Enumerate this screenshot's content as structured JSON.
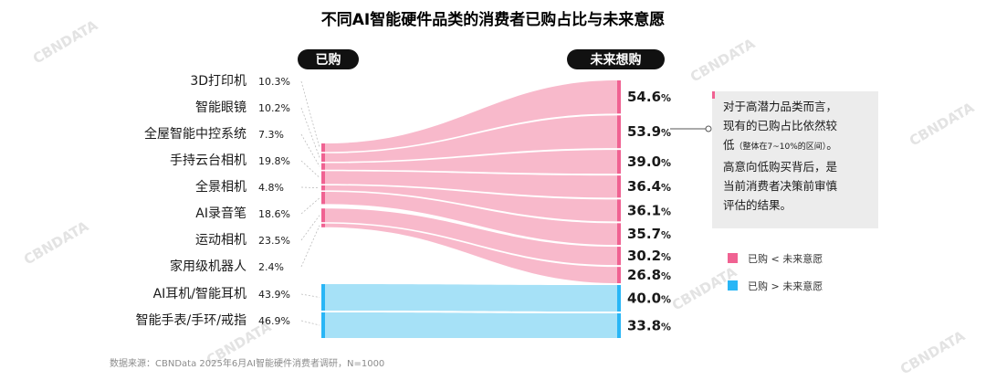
{
  "chart_data": {
    "type": "sankey",
    "title": "不同AI智能硬件品类的消费者已购占比与未来意愿",
    "left_header": "已购",
    "right_header": "未来想购",
    "left": [
      {
        "label": "3D打印机",
        "value": "10.3%"
      },
      {
        "label": "智能眼镜",
        "value": "10.2%"
      },
      {
        "label": "全屋智能中控系统",
        "value": "7.3%"
      },
      {
        "label": "手持云台相机",
        "value": "19.8%"
      },
      {
        "label": "全景相机",
        "value": "4.8%"
      },
      {
        "label": "AI录音笔",
        "value": "18.6%"
      },
      {
        "label": "运动相机",
        "value": "23.5%"
      },
      {
        "label": "家用级机器人",
        "value": "2.4%"
      },
      {
        "label": "AI耳机/智能耳机",
        "value": "43.9%"
      },
      {
        "label": "智能手表/手环/戒指",
        "value": "46.9%"
      }
    ],
    "right": [
      {
        "value": "54.6",
        "unit": "%"
      },
      {
        "value": "53.9",
        "unit": "%"
      },
      {
        "value": "39.0",
        "unit": "%"
      },
      {
        "value": "36.4",
        "unit": "%"
      },
      {
        "value": "36.1",
        "unit": "%"
      },
      {
        "value": "35.7",
        "unit": "%"
      },
      {
        "value": "30.2",
        "unit": "%"
      },
      {
        "value": "26.8",
        "unit": "%"
      },
      {
        "value": "40.0",
        "unit": "%"
      },
      {
        "value": "33.8",
        "unit": "%"
      }
    ],
    "left_values": [
      10.3,
      10.2,
      7.3,
      19.8,
      4.8,
      18.6,
      23.5,
      2.4,
      43.9,
      46.9
    ],
    "right_values": [
      54.6,
      53.9,
      39.0,
      36.4,
      36.1,
      35.7,
      30.2,
      26.8,
      40.0,
      33.8
    ],
    "groups": [
      "pink",
      "pink",
      "pink",
      "pink",
      "pink",
      "pink",
      "pink",
      "pink",
      "blue",
      "blue"
    ],
    "legend": [
      {
        "label": "已购 < 未来意愿",
        "color": "#f06292"
      },
      {
        "label": "已购 > 未来意愿",
        "color": "#29b6f6"
      }
    ],
    "note": {
      "lines": [
        "对于高潜力品类而言，",
        "现有的已购占比依然较"
      ],
      "line3_main": "低",
      "line3_small": "（整体在7~10%的区间）",
      "line3_end": "。",
      "lines_after": [
        "高意向低购买背后，是",
        "当前消费者决策前审慎",
        "评估的结果。"
      ]
    },
    "source": "数据来源：CBNData 2025年6月AI智能硬件消费者调研，N=1000",
    "watermark": "CBNDATA"
  },
  "colors": {
    "pink_flow": "#f8b9cb",
    "pink_node": "#f06292",
    "blue_flow": "#a6e1f7",
    "blue_node": "#29b6f6",
    "pill": "#111111"
  }
}
